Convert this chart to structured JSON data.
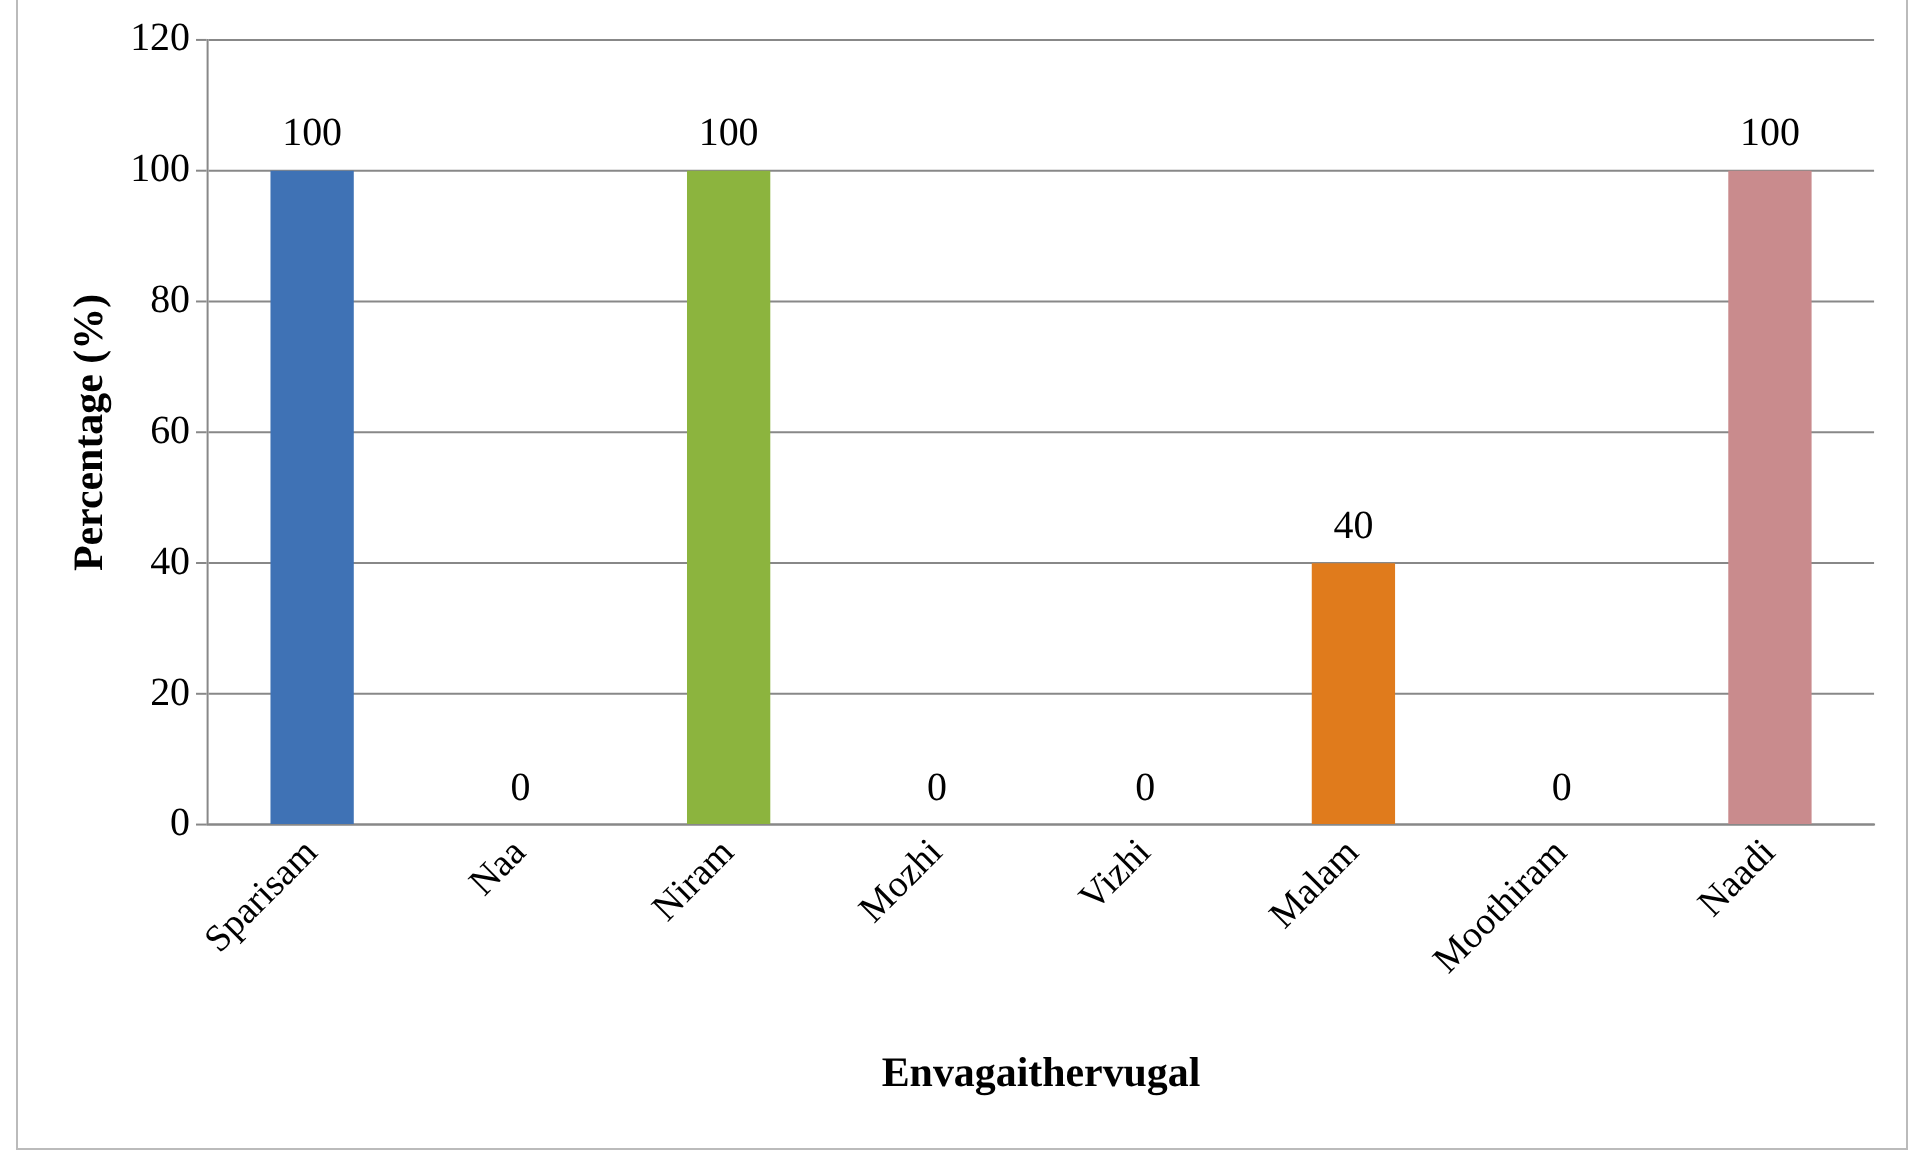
{
  "chart_data": {
    "type": "bar",
    "xlabel": "Envagaithervugal",
    "ylabel": "Percentage (%)",
    "categories": [
      "Sparisam",
      "Naa",
      "Niram",
      "Mozhi",
      "Vizhi",
      "Malam",
      "Moothiram",
      "Naadi"
    ],
    "values": [
      100,
      0,
      100,
      0,
      0,
      40,
      0,
      100
    ],
    "colors": [
      "#3f72b5",
      "#3f72b5",
      "#8cb43e",
      "#8cb43e",
      "#8cb43e",
      "#e07b1c",
      "#e07b1c",
      "#c98b8d"
    ],
    "ylim": [
      0,
      120
    ],
    "yticks": [
      0,
      20,
      40,
      60,
      80,
      100,
      120
    ],
    "grid": "y",
    "data_labels": true,
    "legend": false
  }
}
